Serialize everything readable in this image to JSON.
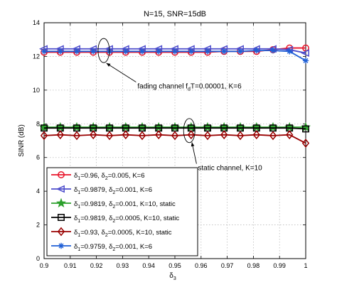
{
  "chart_data": {
    "type": "line",
    "title": "N=15, SNR=15dB",
    "xlabel": "δ",
    "xlabel_sub": "3",
    "ylabel": "SINR (dB)",
    "xlim": [
      0.9,
      1.0
    ],
    "ylim": [
      0,
      14
    ],
    "xticks": [
      0.9,
      0.91,
      0.92,
      0.93,
      0.94,
      0.95,
      0.96,
      0.97,
      0.98,
      0.99,
      1
    ],
    "xtick_labels": [
      "0.9",
      "0.91",
      "0.92",
      "0.93",
      "0.94",
      "0.95",
      "0.96",
      "0.97",
      "0.98",
      "0.99",
      "1"
    ],
    "yticks": [
      0,
      2,
      4,
      6,
      8,
      10,
      12,
      14
    ],
    "ytick_labels": [
      "0",
      "2",
      "4",
      "6",
      "8",
      "10",
      "12",
      "14"
    ],
    "grid": true,
    "legend_position": "bottom-left",
    "x": [
      0.9,
      0.9062,
      0.9125,
      0.9188,
      0.925,
      0.9312,
      0.9375,
      0.9438,
      0.95,
      0.9562,
      0.9625,
      0.9688,
      0.975,
      0.9812,
      0.9875,
      0.9938,
      1.0
    ],
    "series": [
      {
        "legend_parts": [
          {
            "t": "δ",
            "s": "1"
          },
          {
            "t": "=0.96, δ",
            "s": "2"
          },
          {
            "t": "=0.005, K=6",
            "s": ""
          }
        ],
        "color": "#e8142a",
        "marker": "circle",
        "values": [
          12.25,
          12.25,
          12.25,
          12.25,
          12.25,
          12.25,
          12.25,
          12.25,
          12.25,
          12.25,
          12.25,
          12.3,
          12.3,
          12.3,
          12.4,
          12.5,
          12.5
        ]
      },
      {
        "legend_parts": [
          {
            "t": "δ",
            "s": "1"
          },
          {
            "t": "=0.9879, δ",
            "s": "2"
          },
          {
            "t": "=0.001, K=6",
            "s": ""
          }
        ],
        "color": "#4d4dcc",
        "marker": "triangle-left",
        "values": [
          12.45,
          12.45,
          12.45,
          12.45,
          12.45,
          12.45,
          12.45,
          12.45,
          12.45,
          12.45,
          12.45,
          12.45,
          12.45,
          12.45,
          12.45,
          12.4,
          12.2
        ]
      },
      {
        "legend_parts": [
          {
            "t": "δ",
            "s": "1"
          },
          {
            "t": "=0.9819, δ",
            "s": "2"
          },
          {
            "t": "=0.001, K=10, static",
            "s": ""
          }
        ],
        "color": "#2ca02c",
        "marker": "star",
        "values": [
          7.8,
          7.8,
          7.8,
          7.8,
          7.8,
          7.8,
          7.8,
          7.8,
          7.8,
          7.8,
          7.8,
          7.8,
          7.8,
          7.8,
          7.8,
          7.8,
          7.8
        ]
      },
      {
        "legend_parts": [
          {
            "t": "δ",
            "s": "1"
          },
          {
            "t": "=0.9819, δ",
            "s": "2"
          },
          {
            "t": "=0.0005, K=10, static",
            "s": ""
          }
        ],
        "color": "#000000",
        "marker": "square",
        "values": [
          7.75,
          7.75,
          7.75,
          7.75,
          7.75,
          7.75,
          7.75,
          7.75,
          7.75,
          7.75,
          7.75,
          7.75,
          7.75,
          7.75,
          7.75,
          7.75,
          7.7
        ]
      },
      {
        "legend_parts": [
          {
            "t": "δ",
            "s": "1"
          },
          {
            "t": "=0.93, δ",
            "s": "2"
          },
          {
            "t": "=0.0005, K=10, static",
            "s": ""
          }
        ],
        "color": "#990000",
        "marker": "diamond",
        "values": [
          7.3,
          7.35,
          7.3,
          7.35,
          7.3,
          7.35,
          7.3,
          7.35,
          7.3,
          7.35,
          7.3,
          7.35,
          7.3,
          7.35,
          7.3,
          7.35,
          6.85
        ]
      },
      {
        "legend_parts": [
          {
            "t": "δ",
            "s": "1"
          },
          {
            "t": "=0.9759, δ",
            "s": "2"
          },
          {
            "t": "=0.001, K=6",
            "s": ""
          }
        ],
        "color": "#1f5fd6",
        "marker": "asterisk",
        "values": [
          12.3,
          12.3,
          12.3,
          12.3,
          12.3,
          12.3,
          12.3,
          12.3,
          12.3,
          12.3,
          12.3,
          12.3,
          12.3,
          12.35,
          12.35,
          12.3,
          11.75
        ]
      }
    ],
    "annotations": [
      {
        "parts": [
          {
            "t": "fading channel f",
            "s": ""
          },
          {
            "t": "",
            "s": "d"
          },
          {
            "t": "T=0.00001, K=6",
            "s": ""
          }
        ],
        "ellipse_x": 0.9228,
        "ellipse_y": 12.35,
        "text_x": 0.9357,
        "text_y": 10.1,
        "arrow_to_x": 0.9238,
        "arrow_to_y": 11.6
      },
      {
        "parts": [
          {
            "t": "static channel, K=10",
            "s": ""
          }
        ],
        "ellipse_x": 0.9555,
        "ellipse_y": 7.6,
        "text_x": 0.9588,
        "text_y": 5.25,
        "arrow_to_x": 0.9565,
        "arrow_to_y": 6.9
      }
    ]
  }
}
